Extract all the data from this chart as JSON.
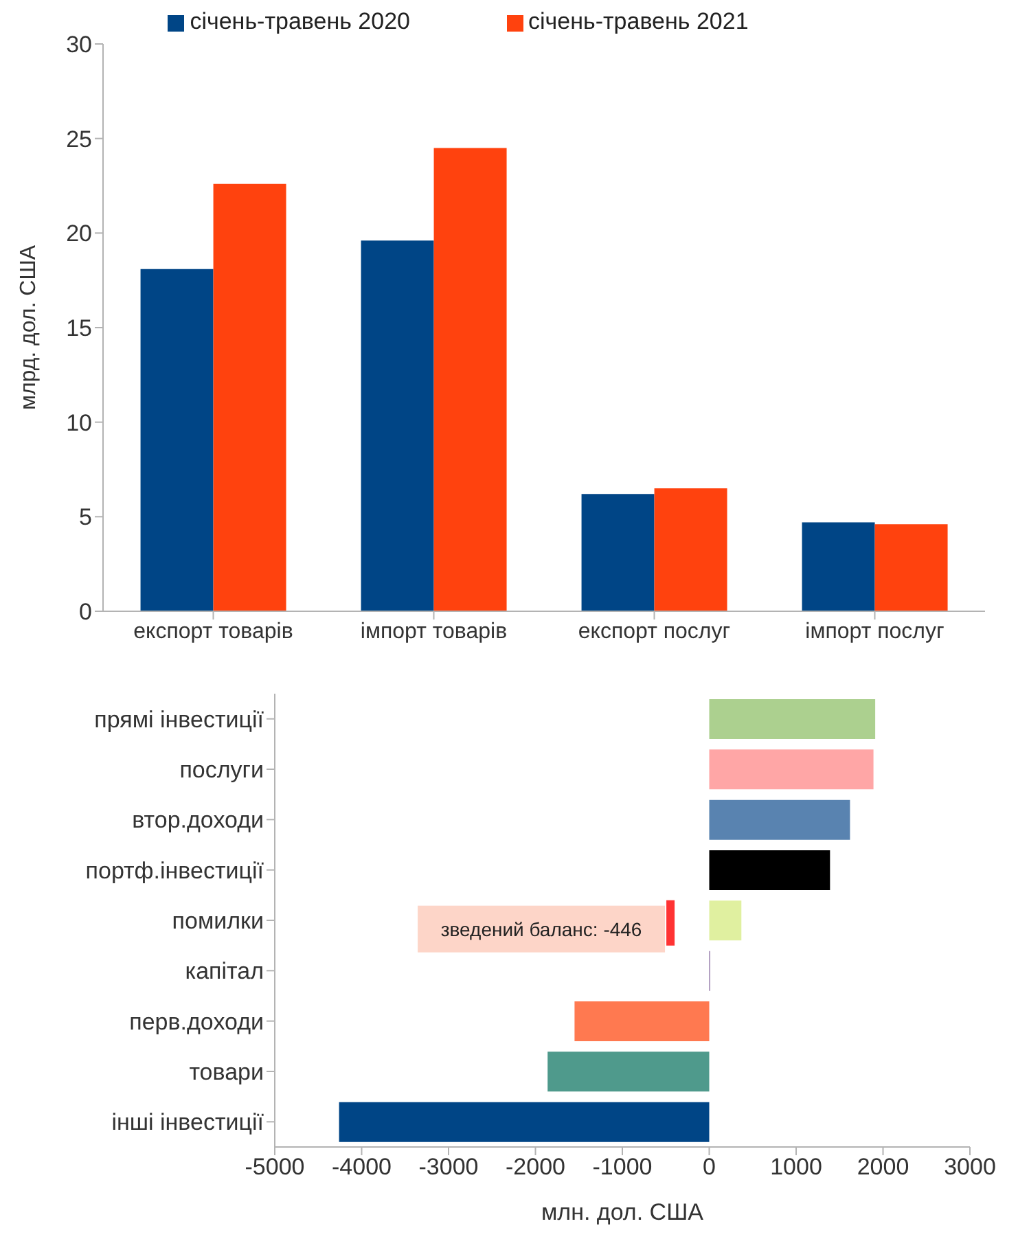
{
  "chart_data": [
    {
      "type": "bar",
      "categories": [
        "експорт товарів",
        "імпорт товарів",
        "експорт послуг",
        "імпорт послуг"
      ],
      "ylabel": "млрд. дол. США",
      "ylim": [
        0,
        30
      ],
      "yticks": [
        0,
        5,
        10,
        15,
        20,
        25,
        30
      ],
      "legend": "top",
      "series": [
        {
          "name": "січень-травень 2020",
          "color": "#004586",
          "values": [
            18.1,
            19.6,
            6.2,
            4.7
          ]
        },
        {
          "name": "січень-травень 2021",
          "color": "#ff420e",
          "values": [
            22.6,
            24.5,
            6.5,
            4.6
          ]
        }
      ]
    },
    {
      "type": "bar",
      "orientation": "horizontal",
      "categories": [
        "прямі інвестиції",
        "послуги",
        "втор.доходи",
        "портф.інвестиції",
        "помилки",
        "капітал",
        "перв.доходи",
        "товари",
        "інші інвестиції"
      ],
      "xlabel": "млн. дол. США",
      "xlim": [
        -5000,
        3000
      ],
      "xticks": [
        -5000,
        -4000,
        -3000,
        -2000,
        -1000,
        0,
        1000,
        2000,
        3000
      ],
      "values": [
        1910,
        1890,
        1620,
        1390,
        370,
        10,
        -1550,
        -1860,
        -4260
      ],
      "colors": [
        "#acd08f",
        "#ffa6a6",
        "#5983b0",
        "#000000",
        "#e0f0a0",
        "#83649c",
        "#ff7950",
        "#4f9a8c",
        "#004586"
      ],
      "ref_lines": [
        {
          "axis": "x",
          "value": -446,
          "label": "зведений баланс: -446",
          "color": "#ff3333"
        }
      ]
    }
  ]
}
